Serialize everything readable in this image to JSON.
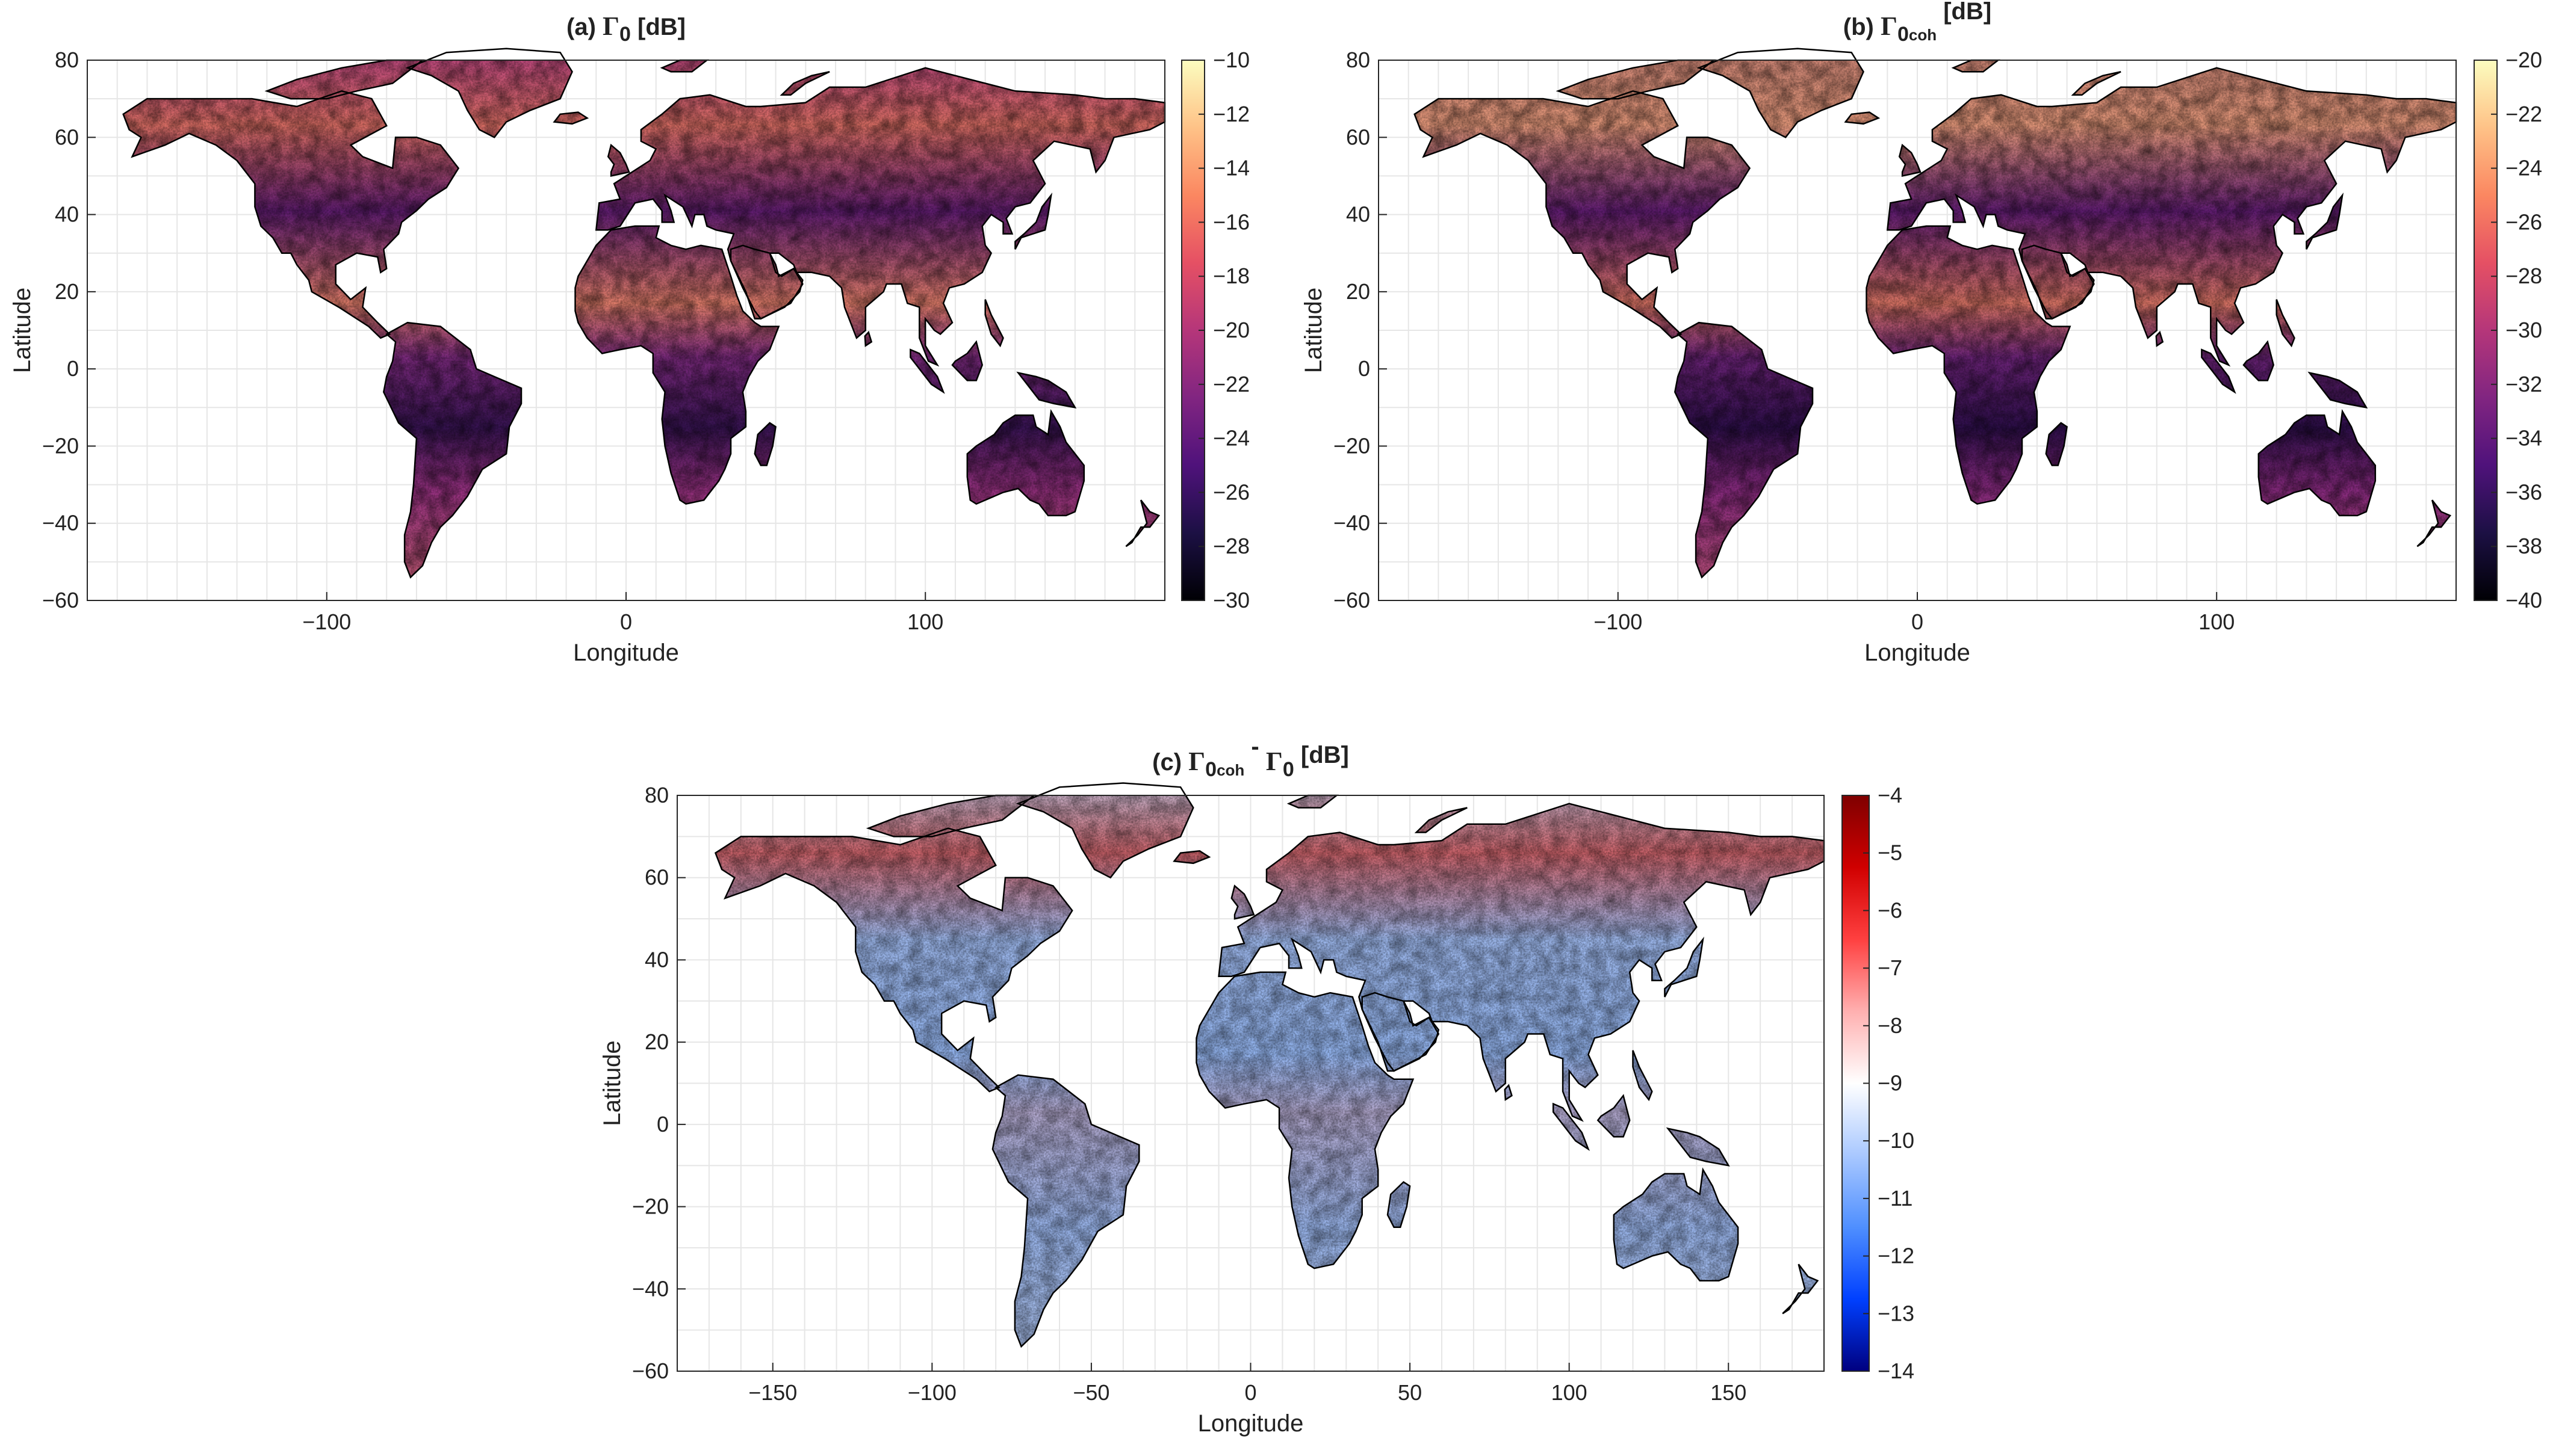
{
  "chart_data": [
    {
      "type": "heatmap",
      "panel": "a",
      "title": "(a) Γ₀ [dB]",
      "title_parts": {
        "prefix": "(a) ",
        "symbol": "Γ",
        "sub": "0",
        "subsub": "",
        "suffix": " [dB]"
      },
      "xlabel": "Longitude",
      "ylabel": "Latitude",
      "xlim": [
        -180,
        180
      ],
      "ylim": [
        -60,
        80
      ],
      "xticks": [
        -100,
        0,
        100
      ],
      "yticks": [
        80,
        60,
        40,
        20,
        0,
        -20,
        -40,
        -60
      ],
      "colormap": "magma",
      "color_range": [
        -30,
        -10
      ],
      "colorbar_ticks": [
        -10,
        -12,
        -14,
        -16,
        -18,
        -20,
        -22,
        -24,
        -26,
        -28,
        -30
      ],
      "grid": true,
      "ocean_color": "#ffffff",
      "coastline_color": "#000000"
    },
    {
      "type": "heatmap",
      "panel": "b",
      "title": "(b) Γ0coh [dB]",
      "title_parts": {
        "prefix": "(b) ",
        "symbol": "Γ",
        "sub": "0",
        "subsub": "coh",
        "suffix": " [dB]"
      },
      "xlabel": "Longitude",
      "ylabel": "Latitude",
      "xlim": [
        -180,
        180
      ],
      "ylim": [
        -60,
        80
      ],
      "xticks": [
        -100,
        0,
        100
      ],
      "yticks": [
        80,
        60,
        40,
        20,
        0,
        -20,
        -40,
        -60
      ],
      "colormap": "magma",
      "color_range": [
        -40,
        -20
      ],
      "colorbar_ticks": [
        -20,
        -22,
        -24,
        -26,
        -28,
        -30,
        -32,
        -34,
        -36,
        -38,
        -40
      ],
      "grid": true,
      "ocean_color": "#ffffff",
      "coastline_color": "#000000"
    },
    {
      "type": "heatmap",
      "panel": "c",
      "title": "(c) Γ0coh - Γ0 [dB]",
      "title_parts": {
        "prefix": "(c) ",
        "symbol": "Γ",
        "sub": "0",
        "subsub": "coh",
        "middle": " - ",
        "symbol2": "Γ",
        "sub2": "0",
        "suffix": " [dB]"
      },
      "xlabel": "Longitude",
      "ylabel": "Latitude",
      "xlim": [
        -180,
        180
      ],
      "ylim": [
        -60,
        80
      ],
      "xticks": [
        -150,
        -100,
        -50,
        0,
        50,
        100,
        150
      ],
      "yticks": [
        80,
        60,
        40,
        20,
        0,
        -20,
        -40,
        -60
      ],
      "colormap": "blue-white-red",
      "color_range": [
        -14,
        -4
      ],
      "colorbar_ticks": [
        -4,
        -5,
        -6,
        -7,
        -8,
        -9,
        -10,
        -11,
        -12,
        -13,
        -14
      ],
      "grid": true,
      "ocean_color": "#ffffff",
      "coastline_color": "#000000"
    }
  ],
  "colors": {
    "magma": [
      "#000004",
      "#1c1044",
      "#4f127b",
      "#812581",
      "#b5367a",
      "#e55064",
      "#fb8761",
      "#fec287",
      "#fcfdbf"
    ],
    "bwr": [
      "#00007f",
      "#0040ff",
      "#4f8fff",
      "#a9c8ff",
      "#ffffff",
      "#ffb0b0",
      "#ff4040",
      "#d00000",
      "#7f0000"
    ],
    "grid": "#e6e6e6",
    "axis": "#262626"
  }
}
